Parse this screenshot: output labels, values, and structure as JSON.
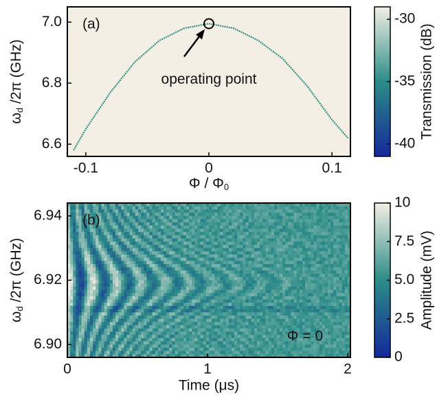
{
  "chart_data": [
    {
      "type": "line",
      "panel_label": "(a)",
      "x": [
        -0.11,
        -0.1,
        -0.08,
        -0.06,
        -0.04,
        -0.02,
        0,
        0.02,
        0.04,
        0.06,
        0.08,
        0.1,
        0.113
      ],
      "values": [
        6.58,
        6.65,
        6.77,
        6.87,
        6.94,
        6.98,
        6.995,
        6.98,
        6.94,
        6.88,
        6.79,
        6.68,
        6.62
      ],
      "color": "#2e8f80",
      "xlim": [
        -0.115,
        0.115
      ],
      "xticks": [
        -0.1,
        0,
        0.1
      ],
      "ylim": [
        6.56,
        7.05
      ],
      "yticks": [
        6.6,
        6.8,
        {
          "value": 7,
          "label": "7.0"
        }
      ],
      "xlabel": {
        "main": "Φ / Φ",
        "sub": "0"
      },
      "ylabel": {
        "main": "ω",
        "sub": "d",
        "rest": " /2π (GHz)"
      },
      "annotation": {
        "text": "operating point",
        "x": 0,
        "y": 6.995
      },
      "colorbar": {
        "label": "Transmission (dB)",
        "lim": [
          -41,
          -29
        ],
        "ticks": [
          -30,
          -35,
          -40
        ],
        "colormap": [
          "#14289a",
          "#2c8c88",
          "#f3efe4"
        ]
      }
    },
    {
      "type": "heatmap",
      "panel_label": "(b)",
      "xlim": [
        0,
        2.02
      ],
      "xticks": [
        0,
        1,
        2
      ],
      "ylim": [
        6.896,
        6.944
      ],
      "yticks": [
        {
          "value": 6.9,
          "label": "6.90"
        },
        {
          "value": 6.92,
          "label": "6.92"
        },
        {
          "value": 6.94,
          "label": "6.94"
        }
      ],
      "xlabel": "Time (μs)",
      "ylabel": {
        "main": "ω",
        "sub": "d",
        "rest": " /2π (GHz)"
      },
      "annotation": {
        "text": "Φ = 0"
      },
      "colorbar": {
        "label": "Amplitude (mV)",
        "lim": [
          0,
          10
        ],
        "ticks": [
          0,
          2.5,
          {
            "value": 5,
            "label": "5.0"
          },
          7.5,
          10
        ],
        "colormap": [
          "#14289a",
          "#2c8c88",
          "#f3efe4"
        ]
      }
    }
  ]
}
